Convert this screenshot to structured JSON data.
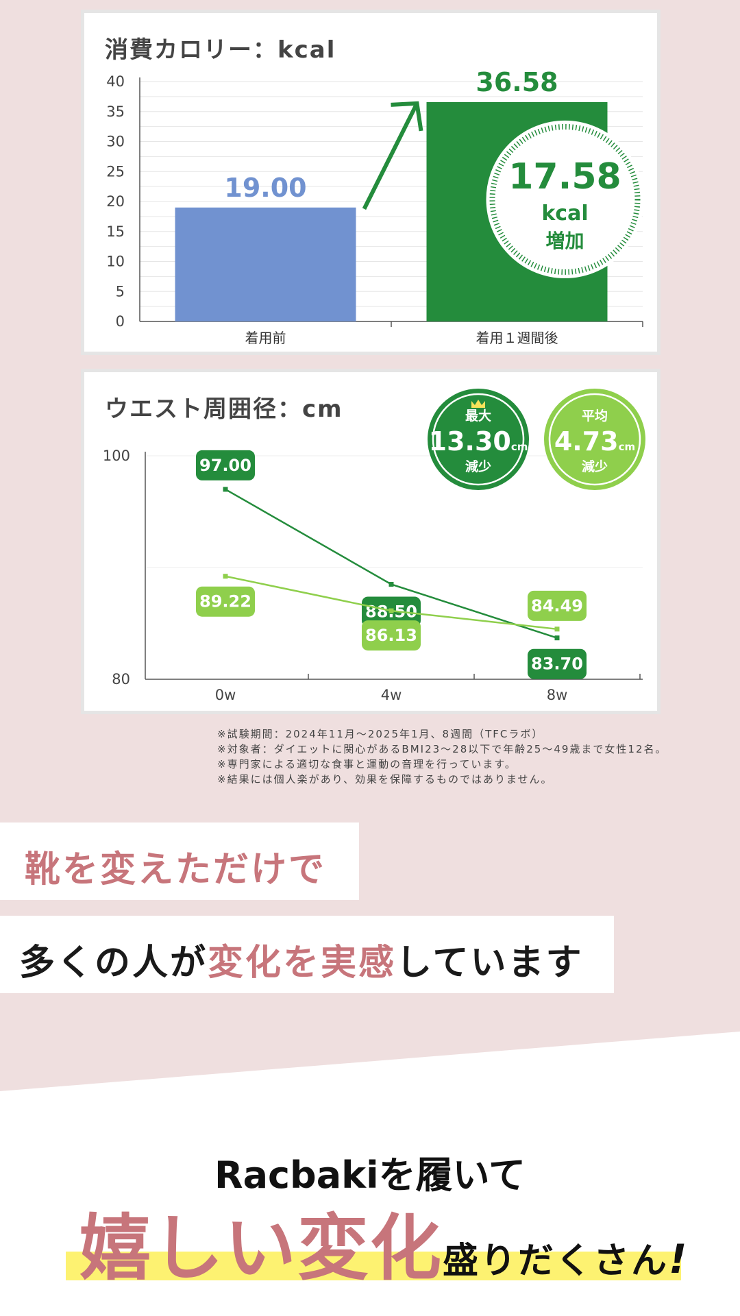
{
  "chart_data": [
    {
      "type": "bar",
      "title": "消費カロリー：kcal",
      "categories": [
        "着用前",
        "着用１週間後"
      ],
      "values": [
        19.0,
        36.58
      ],
      "value_labels": [
        "19.00",
        "36.58"
      ],
      "ylim": [
        0,
        40
      ],
      "yticks": [
        "0",
        "5",
        "10",
        "15",
        "20",
        "25",
        "30",
        "35",
        "40"
      ],
      "colors": [
        "#7192d0",
        "#248c3c"
      ],
      "grid": true,
      "badge": {
        "value": "17.58",
        "unit": "kcal",
        "label": "増加"
      }
    },
    {
      "type": "line",
      "title": "ウエスト周囲径：cm",
      "x": [
        "0w",
        "4w",
        "8w"
      ],
      "ylim": [
        80,
        100
      ],
      "yticks": [
        "80",
        "100"
      ],
      "series": [
        {
          "values": [
            97.0,
            88.5,
            83.7
          ],
          "labels": [
            "97.00",
            "88.50",
            "83.70"
          ],
          "color": "#248c3c"
        },
        {
          "values": [
            89.22,
            86.13,
            84.49
          ],
          "labels": [
            "89.22",
            "86.13",
            "84.49"
          ],
          "color": "#8fcf4c"
        }
      ],
      "badges": [
        {
          "label": "最大",
          "value": "13.30",
          "unit": "cm",
          "sub": "減少",
          "color": "#248c3c",
          "icon": "crown-icon"
        },
        {
          "label": "平均",
          "value": "4.73",
          "unit": "cm",
          "sub": "減少",
          "color": "#8fcf4c"
        }
      ]
    }
  ],
  "notes": [
    "※試験期間：2024年11月～2025年1月、8週間（TFCラボ）",
    "※対象者：ダイエットに関心があるBMI23～28以下で年齢25～49歳まで女性12名。",
    "※専門家による適切な食事と運動の音理を行っています。",
    "※結果には個人楽があり、効果を保障するものではありません。"
  ],
  "banner1": "靴を変えただけで",
  "banner2": {
    "pre": "多くの人が",
    "accent": "変化を実感",
    "post": "しています"
  },
  "headline": {
    "line1": "Racbakiを履いて",
    "big": "嬉しい変化",
    "small": "盛りだくさん",
    "bang": "!"
  },
  "colors": {
    "pink_bg": "#efdfdf",
    "accent": "#c7757b",
    "highlight": "#fdf271"
  }
}
